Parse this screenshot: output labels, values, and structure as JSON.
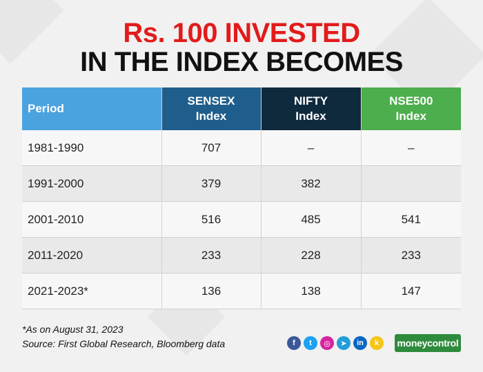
{
  "title": {
    "line1": "Rs. 100 INVESTED",
    "line2": "IN THE INDEX BECOMES"
  },
  "colors": {
    "title_accent": "#e21b1b",
    "period_header": "#4aa3df",
    "sensex_header": "#1f5e8c",
    "nifty_header": "#0f2a3d",
    "nse500_header": "#4cae4c"
  },
  "table": {
    "headers": {
      "period": "Period",
      "sensex_line1": "SENSEX",
      "sensex_line2": "Index",
      "nifty_line1": "NIFTY",
      "nifty_line2": "Index",
      "nse500_line1": "NSE500",
      "nse500_line2": "Index"
    },
    "rows": [
      {
        "period": "1981-1990",
        "sensex": "707",
        "nifty": "–",
        "nse500": "–"
      },
      {
        "period": "1991-2000",
        "sensex": "379",
        "nifty": "382",
        "nse500": ""
      },
      {
        "period": "2001-2010",
        "sensex": "516",
        "nifty": "485",
        "nse500": "541"
      },
      {
        "period": "2011-2020",
        "sensex": "233",
        "nifty": "228",
        "nse500": "233"
      },
      {
        "period": "2021-2023*",
        "sensex": "136",
        "nifty": "138",
        "nse500": "147"
      }
    ]
  },
  "footnotes": {
    "note": "*As on August 31, 2023",
    "source": "Source: First Global Research, Bloomberg data"
  },
  "social_icons": [
    {
      "name": "facebook-icon",
      "glyph": "f",
      "color": "#3b5998"
    },
    {
      "name": "twitter-icon",
      "glyph": "t",
      "color": "#1da1f2"
    },
    {
      "name": "instagram-icon",
      "glyph": "◎",
      "color": "#d6249f"
    },
    {
      "name": "telegram-icon",
      "glyph": "➤",
      "color": "#229ed9"
    },
    {
      "name": "linkedin-icon",
      "glyph": "in",
      "color": "#0a66c2"
    },
    {
      "name": "koo-icon",
      "glyph": "k",
      "color": "#f5c518"
    }
  ],
  "logo": {
    "text": "moneycontrol"
  }
}
